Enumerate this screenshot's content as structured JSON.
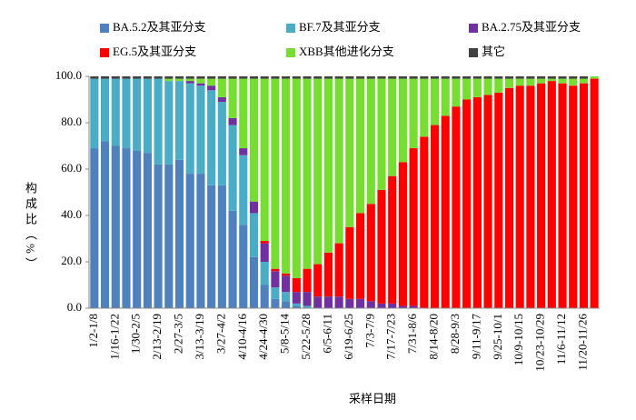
{
  "chart_data": {
    "type": "stacked_bar",
    "ylabel": "构成比（%）",
    "xlabel": "采样日期",
    "categories": [
      "1/2-1/8",
      null,
      "1/16-1/22",
      null,
      "1/30-2/5",
      null,
      "2/13-2/19",
      null,
      "2/27-3/5",
      null,
      "3/13-3/19",
      null,
      "3/27-4/2",
      null,
      "4/10-4/16",
      null,
      "4/24-4/30",
      null,
      "5/8-5/14",
      null,
      "5/22-5/28",
      null,
      "6/5-6/11",
      null,
      "6/19-6/25",
      null,
      "7/3-7/9",
      null,
      "7/17-7/23",
      null,
      "7/31-8/6",
      null,
      "8/14-8/20",
      null,
      "8/28-9/3",
      null,
      "9/11-9/17",
      null,
      "9/25-10/1",
      null,
      "10/9-10/15",
      null,
      "10/23-10/29",
      null,
      "11/6-11/12",
      null,
      "11/20-11/26",
      null
    ],
    "series": [
      {
        "name": "BA.5.2及其亚分支",
        "color": "#4f81bd",
        "values": [
          69,
          72,
          70,
          69,
          68,
          67,
          62,
          62,
          64,
          58,
          58,
          53,
          53,
          42,
          36,
          22,
          10,
          4,
          3,
          1,
          0,
          0,
          0,
          0,
          0,
          0,
          0,
          0,
          0,
          0,
          0,
          0,
          0,
          0,
          0,
          0,
          0,
          0,
          0,
          0,
          0,
          0,
          0,
          0,
          0,
          0,
          0,
          0
        ]
      },
      {
        "name": "BF.7及其亚分支",
        "color": "#4bacc6",
        "values": [
          30,
          27,
          29,
          30,
          31,
          32,
          37,
          36,
          34,
          39,
          38,
          41,
          36,
          37,
          30,
          19,
          10,
          5,
          4,
          1,
          1,
          0,
          0,
          0,
          0,
          0,
          0,
          0,
          0,
          0,
          0,
          0,
          0,
          0,
          0,
          0,
          0,
          0,
          0,
          0,
          0,
          0,
          0,
          0,
          0,
          0,
          0,
          0
        ]
      },
      {
        "name": "BA.2.75及其亚分支",
        "color": "#7030a0",
        "values": [
          0,
          0,
          0,
          0,
          0,
          0,
          0,
          0,
          0,
          1,
          1,
          2,
          2,
          3,
          3,
          5,
          8,
          7,
          7,
          5,
          6,
          5,
          5,
          5,
          4,
          4,
          3,
          2,
          2,
          1,
          1,
          0,
          0,
          0,
          0,
          0,
          0,
          0,
          0,
          0,
          0,
          0,
          0,
          0,
          0,
          0,
          0,
          0
        ]
      },
      {
        "name": "EG.5及其亚分支",
        "color": "#ff0000",
        "values": [
          0,
          0,
          0,
          0,
          0,
          0,
          0,
          0,
          0,
          0,
          0,
          0,
          0,
          0,
          0,
          0,
          1,
          1,
          1,
          6,
          10,
          14,
          19,
          23,
          31,
          37,
          42,
          49,
          55,
          62,
          68,
          74,
          79,
          83,
          87,
          90,
          91,
          92,
          93,
          95,
          96,
          96,
          97,
          98,
          97,
          96,
          97,
          99
        ]
      },
      {
        "name": "XBB其他进化分支",
        "color": "#77dd33",
        "values": [
          0,
          0,
          0,
          0,
          0,
          0,
          0,
          1,
          1,
          1,
          2,
          3,
          8,
          17,
          30,
          53,
          70,
          82,
          84,
          86,
          82,
          80,
          75,
          71,
          64,
          58,
          54,
          48,
          42,
          36,
          30,
          25,
          20,
          16,
          12,
          9,
          8,
          7,
          6,
          4,
          3,
          3,
          2,
          1,
          2,
          3,
          2,
          1
        ]
      },
      {
        "name": "其它",
        "color": "#404040",
        "values": [
          1,
          1,
          1,
          1,
          1,
          1,
          1,
          1,
          1,
          1,
          1,
          1,
          1,
          1,
          1,
          1,
          1,
          1,
          1,
          1,
          1,
          1,
          1,
          1,
          1,
          1,
          1,
          1,
          1,
          1,
          1,
          1,
          1,
          1,
          1,
          1,
          1,
          1,
          1,
          1,
          1,
          1,
          1,
          1,
          1,
          1,
          1,
          0
        ]
      }
    ],
    "ylim": [
      0,
      100
    ],
    "yticks": [
      {
        "value": 0,
        "label": "0.0"
      },
      {
        "value": 20,
        "label": "20.0"
      },
      {
        "value": 40,
        "label": "40.0"
      },
      {
        "value": 60,
        "label": "60.0"
      },
      {
        "value": 80,
        "label": "80.0"
      },
      {
        "value": 100,
        "label": "100.0"
      }
    ]
  }
}
